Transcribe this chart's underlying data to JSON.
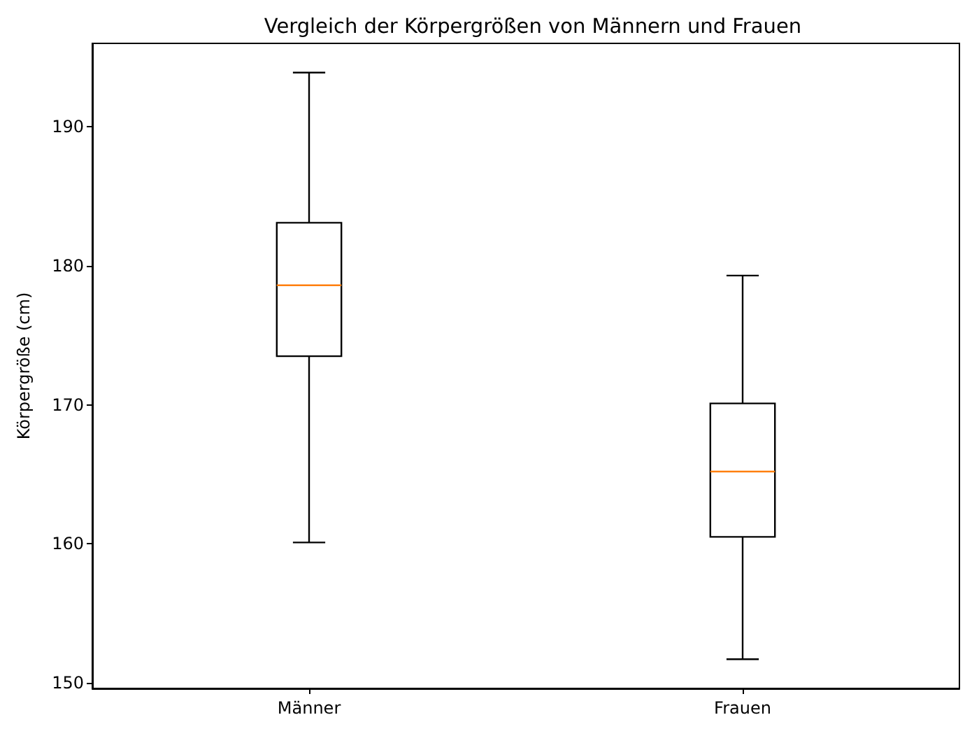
{
  "chart_data": {
    "type": "box",
    "title": "Vergleich der Körpergrößen von Männern und Frauen",
    "ylabel": "Körpergröße (cm)",
    "categories": [
      "Männer",
      "Frauen"
    ],
    "boxes": [
      {
        "low": 160.1,
        "q1": 173.5,
        "median": 178.6,
        "q3": 183.1,
        "high": 193.9
      },
      {
        "low": 151.7,
        "q1": 160.5,
        "median": 165.2,
        "q3": 170.1,
        "high": 179.3
      }
    ],
    "color": "#000000",
    "ylim": [
      149.6,
      196.0
    ],
    "yticks": [
      150,
      160,
      170,
      180,
      190
    ]
  }
}
